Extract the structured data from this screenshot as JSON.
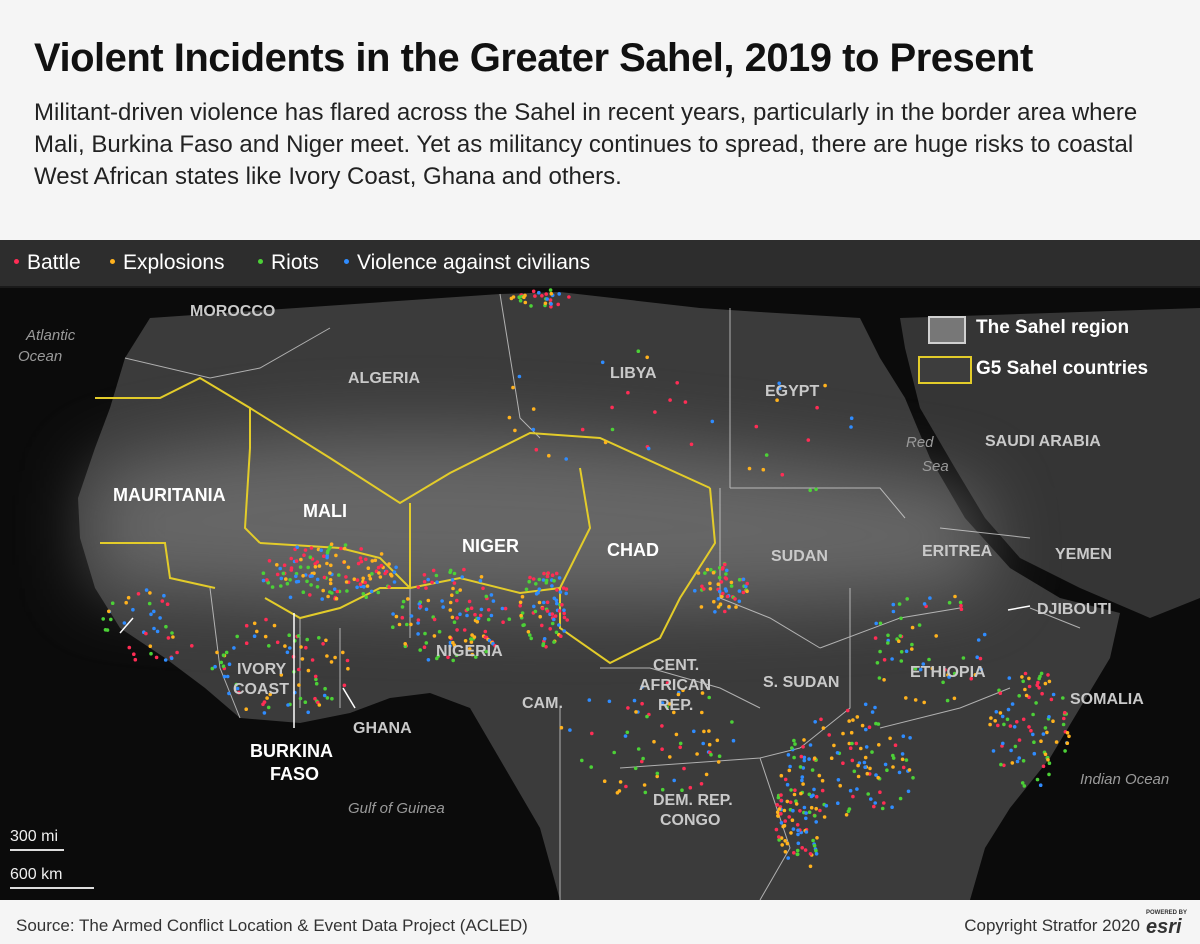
{
  "header": {
    "title": "Violent Incidents in the Greater Sahel, 2019 to Present",
    "subtitle": "Militant-driven violence has flared across the Sahel in recent years, particularly in the border area where Mali, Burkina Faso and Niger meet. Yet as militancy continues to spread, there are huge risks to coastal West African states like Ivory Coast, Ghana and others."
  },
  "legend": {
    "items": [
      {
        "label": "Battle",
        "color": "#ff2d55"
      },
      {
        "label": "Explosions",
        "color": "#ffb21e"
      },
      {
        "label": "Riots",
        "color": "#4cd137"
      },
      {
        "label": "Violence against civilians",
        "color": "#2f8cff"
      }
    ]
  },
  "map_key": {
    "sahel_region_label": "The Sahel region",
    "g5_label": "G5 Sahel countries",
    "g5_border_color": "#e3cc2a"
  },
  "countries": {
    "morocco": "MOROCCO",
    "algeria": "ALGERIA",
    "libya": "LIBYA",
    "egypt": "EGYPT",
    "saudi_arabia": "SAUDI ARABIA",
    "mauritania": "MAURITANIA",
    "mali": "MALI",
    "niger": "NIGER",
    "chad": "CHAD",
    "sudan": "SUDAN",
    "eritrea": "ERITREA",
    "yemen": "YEMEN",
    "djibouti": "DJIBOUTI",
    "ethiopia": "ETHIOPIA",
    "nigeria": "NIGERIA",
    "ivory_coast_1": "IVORY",
    "ivory_coast_2": "COAST",
    "ghana": "GHANA",
    "burkina_1": "BURKINA",
    "burkina_2": "FASO",
    "cam": "CAM.",
    "car_1": "CENT.",
    "car_2": "AFRICAN",
    "car_3": "REP.",
    "s_sudan": "S. SUDAN",
    "somalia": "SOMALIA",
    "drc_1": "DEM. REP.",
    "drc_2": "CONGO"
  },
  "water": {
    "atlantic_1": "Atlantic",
    "atlantic_2": "Ocean",
    "red_sea_1": "Red",
    "red_sea_2": "Sea",
    "indian_ocean": "Indian Ocean",
    "gulf_guinea": "Gulf of Guinea"
  },
  "scale": {
    "miles": "300 mi",
    "km": "600 km"
  },
  "footer": {
    "source": "Source: The Armed Conflict Location & Event Data Project (ACLED)",
    "copyright": "Copyright Stratfor 2020",
    "esri_small": "POWERED BY",
    "esri_big": "esri"
  }
}
